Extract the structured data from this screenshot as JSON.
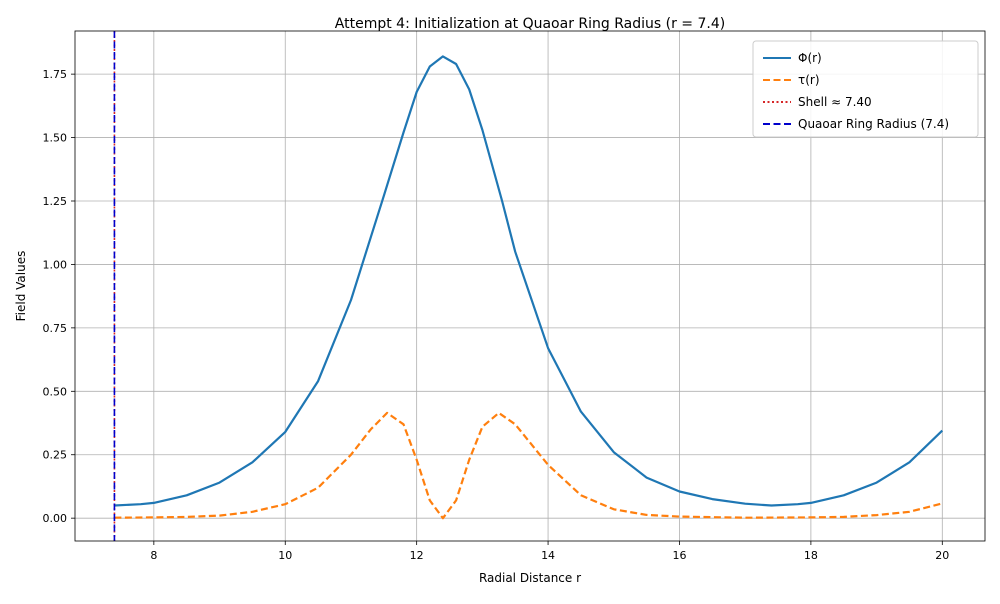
{
  "chart_data": {
    "type": "line",
    "title": "Attempt 4: Initialization at Quaoar Ring Radius (r = 7.4)",
    "xlabel": "Radial Distance r",
    "ylabel": "Field Values",
    "xlim": [
      6.8,
      20.65
    ],
    "ylim": [
      -0.09,
      1.92
    ],
    "xticks": [
      8,
      10,
      12,
      14,
      16,
      18,
      20
    ],
    "xtick_labels": [
      "8",
      "10",
      "12",
      "14",
      "16",
      "18",
      "20"
    ],
    "yticks": [
      0.0,
      0.25,
      0.5,
      0.75,
      1.0,
      1.25,
      1.5,
      1.75
    ],
    "ytick_labels": [
      "0.00",
      "0.25",
      "0.50",
      "0.75",
      "1.00",
      "1.25",
      "1.50",
      "1.75"
    ],
    "grid": true,
    "legend_position": "top-right",
    "series": [
      {
        "name": "Φ(r)",
        "color": "#1f77b4",
        "style": "solid",
        "x": [
          7.4,
          7.8,
          8.0,
          8.5,
          9.0,
          9.5,
          10.0,
          10.5,
          11.0,
          11.5,
          11.8,
          12.0,
          12.2,
          12.4,
          12.6,
          12.8,
          13.0,
          13.3,
          13.5,
          14.0,
          14.5,
          15.0,
          15.5,
          16.0,
          16.5,
          17.0,
          17.4,
          17.8,
          18.0,
          18.5,
          19.0,
          19.5,
          20.0
        ],
        "y": [
          0.05,
          0.055,
          0.06,
          0.09,
          0.14,
          0.22,
          0.34,
          0.54,
          0.86,
          1.27,
          1.52,
          1.68,
          1.78,
          1.82,
          1.79,
          1.69,
          1.53,
          1.25,
          1.05,
          0.67,
          0.42,
          0.26,
          0.16,
          0.105,
          0.075,
          0.057,
          0.05,
          0.055,
          0.06,
          0.09,
          0.14,
          0.22,
          0.345
        ]
      },
      {
        "name": "τ(r)",
        "color": "#ff7f0e",
        "style": "dashed",
        "x": [
          7.4,
          8.0,
          8.5,
          9.0,
          9.5,
          10.0,
          10.5,
          11.0,
          11.3,
          11.55,
          11.8,
          12.0,
          12.2,
          12.4,
          12.6,
          12.8,
          13.0,
          13.25,
          13.5,
          14.0,
          14.5,
          15.0,
          15.5,
          16.0,
          17.0,
          18.0,
          18.5,
          19.0,
          19.5,
          20.0
        ],
        "y": [
          0.002,
          0.003,
          0.005,
          0.01,
          0.025,
          0.055,
          0.12,
          0.25,
          0.35,
          0.415,
          0.37,
          0.23,
          0.07,
          0.0,
          0.07,
          0.23,
          0.36,
          0.415,
          0.37,
          0.21,
          0.09,
          0.035,
          0.013,
          0.006,
          0.002,
          0.003,
          0.005,
          0.012,
          0.025,
          0.058
        ]
      }
    ],
    "vlines": [
      {
        "name": "Shell ≈ 7.40",
        "x": 7.4,
        "color": "#d62728",
        "style": "dotted"
      },
      {
        "name": "Quaoar Ring Radius (7.4)",
        "x": 7.4,
        "color": "#0000cc",
        "style": "dashed"
      }
    ]
  }
}
